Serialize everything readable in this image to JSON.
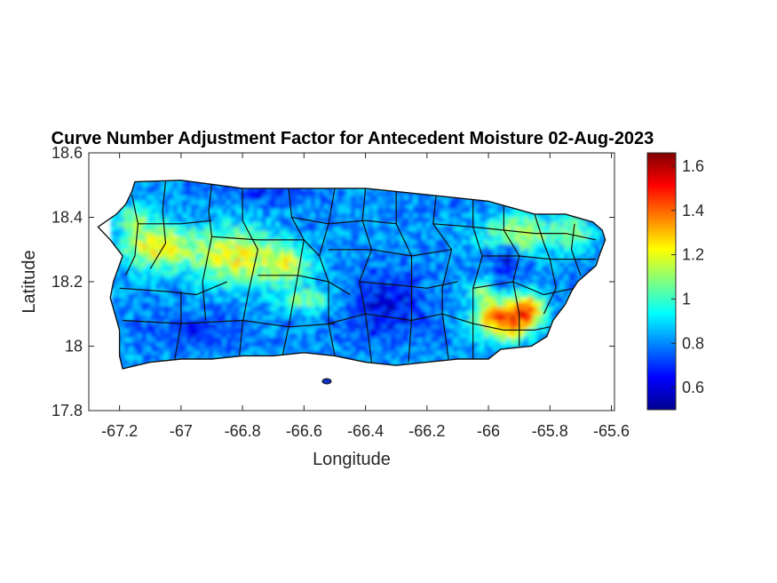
{
  "chart_data": {
    "type": "heatmap",
    "title": "Curve Number Adjustment Factor for Antecedent Moisture 02-Aug-2023",
    "xlabel": "Longitude",
    "ylabel": "Latitude",
    "xlim": [
      -67.3,
      -65.59
    ],
    "ylim": [
      17.8,
      18.6
    ],
    "xticks": [
      -67.2,
      -67,
      -66.8,
      -66.6,
      -66.4,
      -66.2,
      -66,
      -65.8,
      -65.6
    ],
    "xtick_labels": [
      "-67.2",
      "-67",
      "-66.8",
      "-66.6",
      "-66.4",
      "-66.2",
      "-66",
      "-65.8",
      "-65.6"
    ],
    "yticks": [
      17.8,
      18,
      18.2,
      18.4,
      18.6
    ],
    "ytick_labels": [
      "17.8",
      "18",
      "18.2",
      "18.4",
      "18.6"
    ],
    "colormap": "jet",
    "color_limits": [
      0.5,
      1.66
    ],
    "colorbar_ticks": [
      0.6,
      0.8,
      1,
      1.2,
      1.4,
      1.6
    ],
    "colorbar_tick_labels": [
      "0.6",
      "0.8",
      "1",
      "1.2",
      "1.4",
      "1.6"
    ],
    "grid": false,
    "region_outline": [
      [
        -67.27,
        18.37
      ],
      [
        -67.24,
        18.39
      ],
      [
        -67.21,
        18.41
      ],
      [
        -67.18,
        18.44
      ],
      [
        -67.16,
        18.48
      ],
      [
        -67.15,
        18.51
      ],
      [
        -67.0,
        18.515
      ],
      [
        -66.8,
        18.49
      ],
      [
        -66.6,
        18.49
      ],
      [
        -66.4,
        18.49
      ],
      [
        -66.2,
        18.47
      ],
      [
        -66.0,
        18.45
      ],
      [
        -65.85,
        18.41
      ],
      [
        -65.75,
        18.41
      ],
      [
        -65.66,
        18.385
      ],
      [
        -65.63,
        18.36
      ],
      [
        -65.62,
        18.33
      ],
      [
        -65.64,
        18.28
      ],
      [
        -65.65,
        18.25
      ],
      [
        -65.71,
        18.2
      ],
      [
        -65.73,
        18.17
      ],
      [
        -65.75,
        18.13
      ],
      [
        -65.79,
        18.08
      ],
      [
        -65.81,
        18.03
      ],
      [
        -65.86,
        18.0
      ],
      [
        -65.96,
        17.99
      ],
      [
        -66.0,
        17.96
      ],
      [
        -66.1,
        17.96
      ],
      [
        -66.2,
        17.95
      ],
      [
        -66.3,
        17.94
      ],
      [
        -66.4,
        17.95
      ],
      [
        -66.5,
        17.97
      ],
      [
        -66.6,
        17.98
      ],
      [
        -66.7,
        17.97
      ],
      [
        -66.8,
        17.97
      ],
      [
        -66.9,
        17.96
      ],
      [
        -67.0,
        17.96
      ],
      [
        -67.1,
        17.95
      ],
      [
        -67.19,
        17.93
      ],
      [
        -67.2,
        17.97
      ],
      [
        -67.2,
        18.05
      ],
      [
        -67.23,
        18.15
      ],
      [
        -67.22,
        18.2
      ],
      [
        -67.19,
        18.28
      ],
      [
        -67.23,
        18.33
      ]
    ],
    "municipal_boundaries": [
      [
        [
          -67.16,
          18.47
        ],
        [
          -67.14,
          18.38
        ],
        [
          -67.15,
          18.28
        ],
        [
          -67.18,
          18.22
        ]
      ],
      [
        [
          -67.14,
          18.38
        ],
        [
          -67.0,
          18.38
        ],
        [
          -66.9,
          18.39
        ]
      ],
      [
        [
          -67.05,
          18.51
        ],
        [
          -67.06,
          18.42
        ],
        [
          -67.05,
          18.32
        ],
        [
          -67.1,
          18.24
        ]
      ],
      [
        [
          -66.9,
          18.5
        ],
        [
          -66.91,
          18.42
        ],
        [
          -66.9,
          18.34
        ],
        [
          -66.93,
          18.2
        ],
        [
          -66.92,
          18.08
        ]
      ],
      [
        [
          -67.2,
          18.18
        ],
        [
          -67.05,
          18.17
        ],
        [
          -66.95,
          18.16
        ],
        [
          -66.85,
          18.2
        ]
      ],
      [
        [
          -67.19,
          18.08
        ],
        [
          -67.0,
          18.07
        ],
        [
          -66.8,
          18.08
        ],
        [
          -66.65,
          18.06
        ],
        [
          -66.5,
          18.07
        ]
      ],
      [
        [
          -67.0,
          18.17
        ],
        [
          -67.0,
          18.07
        ],
        [
          -67.02,
          17.96
        ]
      ],
      [
        [
          -66.8,
          18.49
        ],
        [
          -66.8,
          18.39
        ],
        [
          -66.75,
          18.3
        ],
        [
          -66.78,
          18.17
        ],
        [
          -66.8,
          18.07
        ],
        [
          -66.81,
          17.97
        ]
      ],
      [
        [
          -66.9,
          18.34
        ],
        [
          -66.75,
          18.33
        ],
        [
          -66.6,
          18.33
        ],
        [
          -66.55,
          18.28
        ]
      ],
      [
        [
          -66.65,
          18.49
        ],
        [
          -66.64,
          18.4
        ],
        [
          -66.6,
          18.33
        ],
        [
          -66.62,
          18.22
        ],
        [
          -66.65,
          18.06
        ],
        [
          -66.67,
          17.97
        ]
      ],
      [
        [
          -66.75,
          18.22
        ],
        [
          -66.62,
          18.22
        ],
        [
          -66.52,
          18.2
        ],
        [
          -66.45,
          18.16
        ]
      ],
      [
        [
          -66.5,
          18.49
        ],
        [
          -66.52,
          18.38
        ],
        [
          -66.55,
          18.28
        ],
        [
          -66.52,
          18.2
        ],
        [
          -66.52,
          18.07
        ],
        [
          -66.5,
          17.97
        ]
      ],
      [
        [
          -66.64,
          18.4
        ],
        [
          -66.52,
          18.38
        ],
        [
          -66.4,
          18.39
        ],
        [
          -66.3,
          18.38
        ]
      ],
      [
        [
          -66.4,
          18.49
        ],
        [
          -66.41,
          18.39
        ],
        [
          -66.38,
          18.3
        ],
        [
          -66.42,
          18.2
        ],
        [
          -66.4,
          18.1
        ],
        [
          -66.38,
          17.95
        ]
      ],
      [
        [
          -66.52,
          18.3
        ],
        [
          -66.38,
          18.3
        ],
        [
          -66.25,
          18.28
        ],
        [
          -66.12,
          18.3
        ]
      ],
      [
        [
          -66.42,
          18.2
        ],
        [
          -66.3,
          18.19
        ],
        [
          -66.2,
          18.18
        ],
        [
          -66.1,
          18.2
        ]
      ],
      [
        [
          -66.52,
          18.07
        ],
        [
          -66.4,
          18.1
        ],
        [
          -66.25,
          18.08
        ],
        [
          -66.15,
          18.1
        ],
        [
          -66.05,
          18.07
        ]
      ],
      [
        [
          -66.3,
          18.48
        ],
        [
          -66.3,
          18.38
        ],
        [
          -66.25,
          18.28
        ],
        [
          -66.25,
          18.19
        ],
        [
          -66.25,
          18.08
        ],
        [
          -66.26,
          17.95
        ]
      ],
      [
        [
          -66.17,
          18.47
        ],
        [
          -66.18,
          18.38
        ],
        [
          -66.12,
          18.3
        ],
        [
          -66.15,
          18.18
        ],
        [
          -66.15,
          18.1
        ],
        [
          -66.13,
          17.96
        ]
      ],
      [
        [
          -66.05,
          18.46
        ],
        [
          -66.05,
          18.37
        ],
        [
          -66.02,
          18.28
        ],
        [
          -66.05,
          18.18
        ],
        [
          -66.05,
          18.07
        ],
        [
          -66.05,
          17.96
        ]
      ],
      [
        [
          -66.18,
          18.38
        ],
        [
          -66.05,
          18.37
        ],
        [
          -65.95,
          18.36
        ],
        [
          -65.85,
          18.35
        ],
        [
          -65.75,
          18.35
        ],
        [
          -65.65,
          18.33
        ]
      ],
      [
        [
          -65.95,
          18.45
        ],
        [
          -65.95,
          18.36
        ],
        [
          -65.9,
          18.28
        ],
        [
          -65.92,
          18.2
        ],
        [
          -65.9,
          18.1
        ],
        [
          -65.9,
          18.0
        ]
      ],
      [
        [
          -66.02,
          18.28
        ],
        [
          -65.9,
          18.28
        ],
        [
          -65.8,
          18.27
        ],
        [
          -65.65,
          18.27
        ]
      ],
      [
        [
          -65.85,
          18.41
        ],
        [
          -65.82,
          18.32
        ],
        [
          -65.8,
          18.27
        ],
        [
          -65.78,
          18.18
        ],
        [
          -65.82,
          18.1
        ]
      ],
      [
        [
          -66.05,
          18.18
        ],
        [
          -65.92,
          18.2
        ],
        [
          -65.82,
          18.16
        ],
        [
          -65.72,
          18.18
        ]
      ],
      [
        [
          -66.05,
          18.07
        ],
        [
          -65.95,
          18.05
        ],
        [
          -65.85,
          18.05
        ],
        [
          -65.8,
          18.06
        ]
      ],
      [
        [
          -65.72,
          18.38
        ],
        [
          -65.73,
          18.3
        ],
        [
          -65.7,
          18.22
        ]
      ]
    ],
    "colorbar_values_note_free": true
  }
}
